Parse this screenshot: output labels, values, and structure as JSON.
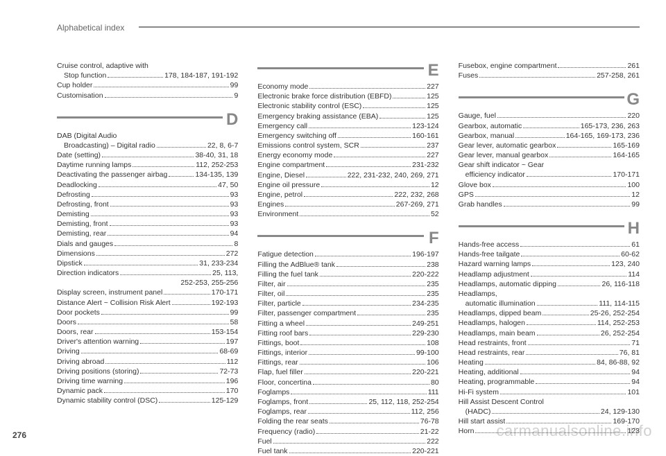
{
  "page_number": "276",
  "header_title": "Alphabetical index",
  "watermark": "carmanualsonline.info",
  "columns": [
    {
      "sections": [
        {
          "letter": null,
          "entries": [
            {
              "label": "Cruise control, adaptive with",
              "pages": null
            },
            {
              "label": "Stop function",
              "pages": "178, 184-187, 191-192",
              "cont": true
            },
            {
              "label": "Cup holder",
              "pages": "99"
            },
            {
              "label": "Customisation",
              "pages": "9"
            }
          ]
        },
        {
          "letter": "D",
          "entries": [
            {
              "label": "DAB (Digital Audio",
              "pages": null
            },
            {
              "label": "Broadcasting) – Digital radio",
              "pages": "22, 8, 6-7",
              "cont": true
            },
            {
              "label": "Date (setting)",
              "pages": "38-40, 31, 18"
            },
            {
              "label": "Daytime running lamps",
              "pages": "112, 252-253"
            },
            {
              "label": "Deactivating the passenger airbag",
              "pages": "134-135, 139"
            },
            {
              "label": "Deadlocking",
              "pages": "47, 50"
            },
            {
              "label": "Defrosting",
              "pages": "93"
            },
            {
              "label": "Defrosting, front",
              "pages": "93"
            },
            {
              "label": "Demisting",
              "pages": "93"
            },
            {
              "label": "Demisting, front",
              "pages": "93"
            },
            {
              "label": "Demisting, rear",
              "pages": "94"
            },
            {
              "label": "Dials and gauges",
              "pages": "8"
            },
            {
              "label": "Dimensions",
              "pages": "272"
            },
            {
              "label": "Dipstick",
              "pages": "31, 233-234"
            },
            {
              "label": "Direction indicators",
              "pages": "25, 113,"
            },
            {
              "label": "",
              "pages": "252-253, 255-256",
              "rightonly": true
            },
            {
              "label": "Display screen, instrument panel",
              "pages": "170-171"
            },
            {
              "label": "Distance Alert ~ Collision Risk Alert",
              "pages": "192-193"
            },
            {
              "label": "Door pockets",
              "pages": "99"
            },
            {
              "label": "Doors",
              "pages": "58"
            },
            {
              "label": "Doors, rear",
              "pages": "153-154"
            },
            {
              "label": "Driver's attention warning",
              "pages": "197"
            },
            {
              "label": "Driving",
              "pages": "68-69"
            },
            {
              "label": "Driving abroad",
              "pages": "112"
            },
            {
              "label": "Driving positions (storing)",
              "pages": "72-73"
            },
            {
              "label": "Driving time warning",
              "pages": "196"
            },
            {
              "label": "Dynamic pack",
              "pages": "170"
            },
            {
              "label": "Dynamic stability control (DSC)",
              "pages": "125-129"
            }
          ]
        }
      ]
    },
    {
      "sections": [
        {
          "letter": "E",
          "entries": [
            {
              "label": "Economy mode",
              "pages": "227"
            },
            {
              "label": "Electronic brake force distribution (EBFD)",
              "pages": "125"
            },
            {
              "label": "Electronic stability control (ESC)",
              "pages": "125"
            },
            {
              "label": "Emergency braking assistance (EBA)",
              "pages": "125"
            },
            {
              "label": "Emergency call",
              "pages": "123-124"
            },
            {
              "label": "Emergency switching off",
              "pages": "160-161"
            },
            {
              "label": "Emissions control system, SCR",
              "pages": "237"
            },
            {
              "label": "Energy economy mode",
              "pages": "227"
            },
            {
              "label": "Engine compartment",
              "pages": "231-232"
            },
            {
              "label": "Engine, Diesel",
              "pages": "222, 231-232, 240, 269, 271"
            },
            {
              "label": "Engine oil pressure",
              "pages": "12"
            },
            {
              "label": "Engine, petrol",
              "pages": "222, 232, 268"
            },
            {
              "label": "Engines",
              "pages": "267-269, 271"
            },
            {
              "label": "Environment",
              "pages": "52"
            }
          ]
        },
        {
          "letter": "F",
          "entries": [
            {
              "label": "Fatigue detection",
              "pages": "196-197"
            },
            {
              "label": "Filling the AdBlue® tank",
              "pages": "238"
            },
            {
              "label": "Filling the fuel tank",
              "pages": "220-222"
            },
            {
              "label": "Filter, air",
              "pages": "235"
            },
            {
              "label": "Filter, oil",
              "pages": "235"
            },
            {
              "label": "Filter, particle",
              "pages": "234-235"
            },
            {
              "label": "Filter, passenger compartment",
              "pages": "235"
            },
            {
              "label": "Fitting a wheel",
              "pages": "249-251"
            },
            {
              "label": "Fitting roof bars",
              "pages": "229-230"
            },
            {
              "label": "Fittings, boot",
              "pages": "108"
            },
            {
              "label": "Fittings, interior",
              "pages": "99-100"
            },
            {
              "label": "Fittings, rear",
              "pages": "106"
            },
            {
              "label": "Flap, fuel filler",
              "pages": "220-221"
            },
            {
              "label": "Floor, concertina",
              "pages": "80"
            },
            {
              "label": "Foglamps",
              "pages": "111"
            },
            {
              "label": "Foglamps, front",
              "pages": "25, 112, 118, 252-254"
            },
            {
              "label": "Foglamps, rear",
              "pages": "112, 256"
            },
            {
              "label": "Folding the rear seats",
              "pages": "76-78"
            },
            {
              "label": "Frequency (radio)",
              "pages": "21-22"
            },
            {
              "label": "Fuel",
              "pages": "222"
            },
            {
              "label": "Fuel tank",
              "pages": "220-221"
            }
          ]
        }
      ]
    },
    {
      "sections": [
        {
          "letter": null,
          "entries": [
            {
              "label": "Fusebox, engine compartment",
              "pages": "261"
            },
            {
              "label": "Fuses",
              "pages": "257-258, 261"
            }
          ]
        },
        {
          "letter": "G",
          "entries": [
            {
              "label": "Gauge, fuel",
              "pages": "220"
            },
            {
              "label": "Gearbox, automatic",
              "pages": "165-173, 236, 263"
            },
            {
              "label": "Gearbox, manual",
              "pages": "164-165, 169-173, 236"
            },
            {
              "label": "Gear lever, automatic gearbox",
              "pages": "165-169"
            },
            {
              "label": "Gear lever, manual gearbox",
              "pages": "164-165"
            },
            {
              "label": "Gear shift indicator ~ Gear",
              "pages": null
            },
            {
              "label": "efficiency indicator",
              "pages": "170-171",
              "cont": true
            },
            {
              "label": "Glove box",
              "pages": "100"
            },
            {
              "label": "GPS",
              "pages": "12"
            },
            {
              "label": "Grab handles",
              "pages": "99"
            }
          ]
        },
        {
          "letter": "H",
          "entries": [
            {
              "label": "Hands-free access",
              "pages": "61"
            },
            {
              "label": "Hands-free tailgate",
              "pages": "60-62"
            },
            {
              "label": "Hazard warning lamps",
              "pages": "123, 240"
            },
            {
              "label": "Headlamp adjustment",
              "pages": "114"
            },
            {
              "label": "Headlamps, automatic dipping",
              "pages": "26, 116-118"
            },
            {
              "label": "Headlamps,",
              "pages": null
            },
            {
              "label": "automatic illumination",
              "pages": "111, 114-115",
              "cont": true
            },
            {
              "label": "Headlamps, dipped beam",
              "pages": "25-26, 252-254"
            },
            {
              "label": "Headlamps, halogen",
              "pages": "114, 252-253"
            },
            {
              "label": "Headlamps, main beam",
              "pages": "26, 252-254"
            },
            {
              "label": "Head restraints, front",
              "pages": "71"
            },
            {
              "label": "Head restraints, rear",
              "pages": "76, 81"
            },
            {
              "label": "Heating",
              "pages": "84, 86-88, 92"
            },
            {
              "label": "Heating, additional",
              "pages": "94"
            },
            {
              "label": "Heating, programmable",
              "pages": "94"
            },
            {
              "label": "Hi-Fi system",
              "pages": "101"
            },
            {
              "label": "Hill Assist Descent Control",
              "pages": null
            },
            {
              "label": "(HADC)",
              "pages": "24, 129-130",
              "cont": true
            },
            {
              "label": "Hill start assist",
              "pages": "169-170"
            },
            {
              "label": "Horn",
              "pages": "123"
            }
          ]
        }
      ]
    }
  ]
}
